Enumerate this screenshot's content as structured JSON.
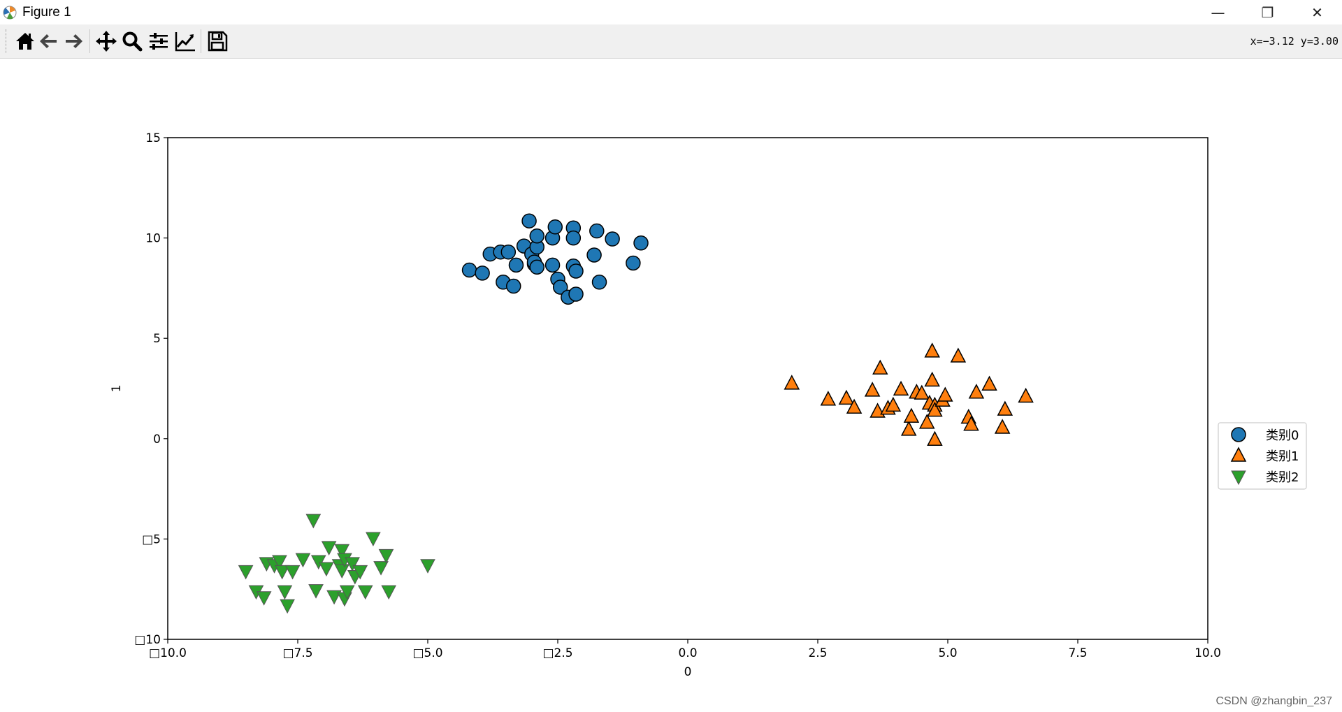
{
  "window": {
    "title": "Figure 1",
    "controls": {
      "minimize": "—",
      "restore": "❐",
      "close": "✕"
    }
  },
  "toolbar": {
    "tools": [
      "home-icon",
      "back-icon",
      "forward-icon",
      "pan-icon",
      "zoom-icon",
      "configure-subplots-icon",
      "edit-axis-icon",
      "save-icon"
    ],
    "coords": "x=−3.12  y=3.00"
  },
  "watermark": "CSDN @zhangbin_237",
  "colors": {
    "class0": "#1f77b4",
    "class1": "#ff7f0e",
    "class2": "#2ca02c"
  },
  "chart_data": {
    "type": "scatter",
    "title": "",
    "xlabel": "0",
    "ylabel": "1",
    "xlim": [
      -10,
      10
    ],
    "ylim": [
      -10,
      15
    ],
    "xticks": [
      -10,
      -7.5,
      -5,
      -2.5,
      0,
      2.5,
      5,
      7.5,
      10
    ],
    "xticklabels": [
      "□10.0",
      "□7.5",
      "□5.0",
      "□2.5",
      "0.0",
      "2.5",
      "5.0",
      "7.5",
      "10.0"
    ],
    "yticks": [
      -10,
      -5,
      0,
      5,
      10,
      15
    ],
    "yticklabels": [
      "□10",
      "□5",
      "0",
      "5",
      "10",
      "15"
    ],
    "grid": false,
    "legend_position": "center-right outside",
    "series": [
      {
        "name": "类别0",
        "marker": "circle",
        "color": "#1f77b4",
        "points": [
          [
            -4.2,
            8.4
          ],
          [
            -3.95,
            8.25
          ],
          [
            -3.8,
            9.2
          ],
          [
            -3.6,
            9.3
          ],
          [
            -3.45,
            9.3
          ],
          [
            -3.55,
            7.8
          ],
          [
            -3.35,
            7.6
          ],
          [
            -3.3,
            8.65
          ],
          [
            -3.15,
            9.6
          ],
          [
            -3.05,
            10.85
          ],
          [
            -3.0,
            9.2
          ],
          [
            -2.95,
            8.7
          ],
          [
            -2.9,
            9.55
          ],
          [
            -2.9,
            10.1
          ],
          [
            -2.95,
            8.8
          ],
          [
            -2.9,
            8.55
          ],
          [
            -2.6,
            10.0
          ],
          [
            -2.55,
            10.55
          ],
          [
            -2.6,
            8.65
          ],
          [
            -2.5,
            7.95
          ],
          [
            -2.45,
            7.55
          ],
          [
            -2.3,
            7.05
          ],
          [
            -2.2,
            10.5
          ],
          [
            -2.2,
            10.0
          ],
          [
            -2.2,
            8.6
          ],
          [
            -2.15,
            8.35
          ],
          [
            -2.15,
            7.2
          ],
          [
            -1.75,
            10.35
          ],
          [
            -1.8,
            9.15
          ],
          [
            -1.7,
            7.8
          ],
          [
            -1.45,
            9.95
          ],
          [
            -1.05,
            8.75
          ],
          [
            -0.9,
            9.75
          ]
        ]
      },
      {
        "name": "类别1",
        "marker": "triangle-up",
        "color": "#ff7f0e",
        "points": [
          [
            2.0,
            2.75
          ],
          [
            2.7,
            1.95
          ],
          [
            3.05,
            2.0
          ],
          [
            3.2,
            1.55
          ],
          [
            3.55,
            2.4
          ],
          [
            3.65,
            1.35
          ],
          [
            3.7,
            3.5
          ],
          [
            3.85,
            1.5
          ],
          [
            3.95,
            1.65
          ],
          [
            4.1,
            2.45
          ],
          [
            4.25,
            0.45
          ],
          [
            4.3,
            1.1
          ],
          [
            4.4,
            2.3
          ],
          [
            4.5,
            2.25
          ],
          [
            4.6,
            0.8
          ],
          [
            4.65,
            1.75
          ],
          [
            4.7,
            4.35
          ],
          [
            4.7,
            2.9
          ],
          [
            4.75,
            1.65
          ],
          [
            4.75,
            1.4
          ],
          [
            4.75,
            -0.05
          ],
          [
            4.9,
            1.9
          ],
          [
            4.95,
            2.15
          ],
          [
            5.2,
            4.1
          ],
          [
            5.4,
            1.05
          ],
          [
            5.45,
            0.7
          ],
          [
            5.55,
            2.3
          ],
          [
            5.8,
            2.7
          ],
          [
            6.05,
            0.55
          ],
          [
            6.1,
            1.45
          ],
          [
            6.5,
            2.1
          ]
        ]
      },
      {
        "name": "类别2",
        "marker": "triangle-down",
        "color": "#2ca02c",
        "points": [
          [
            -8.5,
            -6.6
          ],
          [
            -8.3,
            -7.6
          ],
          [
            -8.15,
            -7.9
          ],
          [
            -8.1,
            -6.2
          ],
          [
            -7.95,
            -6.3
          ],
          [
            -7.85,
            -6.1
          ],
          [
            -7.8,
            -6.6
          ],
          [
            -7.75,
            -7.6
          ],
          [
            -7.7,
            -8.3
          ],
          [
            -7.6,
            -6.6
          ],
          [
            -7.4,
            -6.0
          ],
          [
            -7.2,
            -4.05
          ],
          [
            -7.15,
            -7.55
          ],
          [
            -7.1,
            -6.1
          ],
          [
            -6.95,
            -6.45
          ],
          [
            -6.9,
            -5.4
          ],
          [
            -6.8,
            -7.85
          ],
          [
            -6.7,
            -6.3
          ],
          [
            -6.65,
            -6.55
          ],
          [
            -6.65,
            -5.55
          ],
          [
            -6.6,
            -7.95
          ],
          [
            -6.6,
            -6.0
          ],
          [
            -6.55,
            -7.6
          ],
          [
            -6.45,
            -6.2
          ],
          [
            -6.4,
            -6.85
          ],
          [
            -6.3,
            -6.6
          ],
          [
            -6.2,
            -7.6
          ],
          [
            -6.05,
            -4.95
          ],
          [
            -5.9,
            -6.4
          ],
          [
            -5.8,
            -5.8
          ],
          [
            -5.75,
            -7.6
          ],
          [
            -5.0,
            -6.3
          ]
        ]
      }
    ]
  }
}
